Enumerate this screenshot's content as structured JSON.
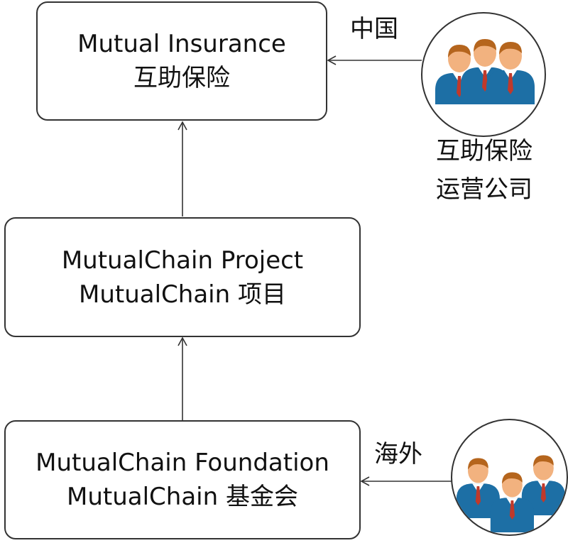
{
  "nodes": {
    "insurance": {
      "line1": "Mutual Insurance",
      "line2": "互助保险"
    },
    "project": {
      "line1": "MutualChain Project",
      "line2": "MutualChain 项目"
    },
    "foundation": {
      "line1": "MutualChain Foundation",
      "line2": "MutualChain 基金会"
    }
  },
  "labels": {
    "china": "中国",
    "overseas": "海外",
    "operator_line1": "互助保险",
    "operator_line2": "运营公司"
  },
  "icons": {
    "top_group": "people-group-icon",
    "bottom_group": "people-group-icon"
  },
  "colors": {
    "border": "#333333",
    "skin": "#f2b27f",
    "hair": "#b5651d",
    "suit": "#1d6fa5",
    "tie": "#c0392b",
    "shirt": "#ffffff"
  }
}
